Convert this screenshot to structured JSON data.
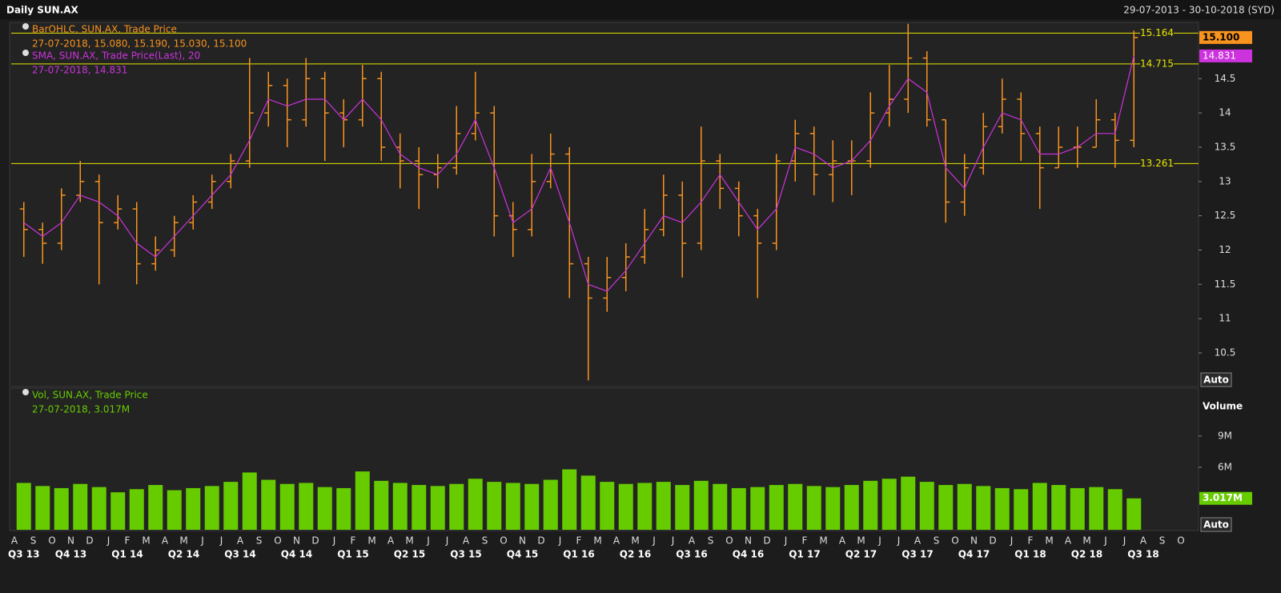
{
  "header": {
    "title": "Daily SUN.AX",
    "date_range": "29-07-2013 - 30-10-2018 (SYD)"
  },
  "controls": {
    "auto": "Auto",
    "volume": "Volume"
  },
  "x_axis": {
    "months": [
      "A",
      "S",
      "O",
      "N",
      "D",
      "J",
      "F",
      "M",
      "A",
      "M",
      "J",
      "J",
      "A",
      "S",
      "O",
      "N",
      "D",
      "J",
      "F",
      "M",
      "A",
      "M",
      "J",
      "J",
      "A",
      "S",
      "O",
      "N",
      "D",
      "J",
      "F",
      "M",
      "A",
      "M",
      "J",
      "J",
      "A",
      "S",
      "O",
      "N",
      "D",
      "J",
      "F",
      "M",
      "A",
      "M",
      "J",
      "J",
      "A",
      "S",
      "O",
      "N",
      "D",
      "J",
      "F",
      "M",
      "A",
      "M",
      "J",
      "J",
      "A",
      "S",
      "O"
    ],
    "quarters": [
      "Q3 13",
      "Q4 13",
      "Q1 14",
      "Q2 14",
      "Q3 14",
      "Q4 14",
      "Q1 15",
      "Q2 15",
      "Q3 15",
      "Q4 15",
      "Q1 16",
      "Q2 16",
      "Q3 16",
      "Q4 16",
      "Q1 17",
      "Q2 17",
      "Q3 17",
      "Q4 17",
      "Q1 18",
      "Q2 18",
      "Q3 18"
    ]
  },
  "chart_data": [
    {
      "type": "ohlc",
      "ylim": [
        10.01,
        15.32
      ],
      "yticks": [
        10.5,
        11,
        11.5,
        12,
        12.5,
        13,
        13.5,
        14,
        14.5
      ],
      "hlines": [
        15.164,
        14.715,
        13.261
      ],
      "hline_color": "#e6e600",
      "series": [
        {
          "name": "BarOHLC, SUN.AX, Trade Price",
          "detail": "27-07-2018, 15.080, 15.190, 15.030, 15.100",
          "color": "#f7931e",
          "open": [
            12.6,
            12.3,
            12.1,
            12.8,
            13.0,
            12.4,
            12.6,
            11.8,
            12.0,
            12.4,
            12.7,
            13.0,
            13.3,
            14.0,
            14.4,
            13.9,
            14.5,
            14.0,
            13.9,
            14.5,
            13.5,
            13.3,
            13.1,
            13.2,
            13.7,
            14.0,
            12.5,
            12.3,
            13.0,
            13.4,
            11.8,
            11.3,
            11.6,
            11.9,
            12.3,
            12.8,
            12.1,
            13.3,
            12.9,
            12.5,
            12.1,
            13.3,
            13.7,
            13.1,
            13.3,
            13.3,
            14.0,
            14.2,
            14.8,
            13.9,
            12.7,
            13.2,
            13.8,
            14.2,
            13.7,
            13.2,
            13.5,
            13.5,
            13.9,
            13.6,
            null,
            null,
            null
          ],
          "high": [
            12.7,
            12.4,
            12.9,
            13.3,
            13.1,
            12.8,
            12.7,
            12.2,
            12.5,
            12.8,
            13.1,
            13.4,
            14.8,
            14.6,
            14.5,
            14.8,
            14.6,
            14.2,
            14.7,
            14.6,
            13.7,
            13.5,
            13.4,
            14.1,
            14.6,
            14.1,
            12.7,
            13.4,
            13.7,
            13.5,
            11.9,
            11.9,
            12.1,
            12.6,
            13.1,
            13.0,
            13.8,
            13.4,
            13.0,
            12.6,
            13.4,
            13.9,
            13.8,
            13.6,
            13.6,
            14.3,
            14.7,
            15.3,
            14.9,
            13.9,
            13.4,
            14.0,
            14.5,
            14.3,
            13.8,
            13.8,
            13.8,
            14.2,
            14.0,
            15.2,
            null,
            null,
            null
          ],
          "low": [
            11.9,
            11.8,
            12.0,
            12.7,
            11.5,
            12.3,
            11.5,
            11.7,
            11.9,
            12.3,
            12.6,
            12.9,
            13.2,
            13.8,
            13.5,
            13.8,
            13.3,
            13.5,
            13.8,
            13.3,
            12.9,
            12.6,
            12.9,
            13.1,
            13.6,
            12.2,
            11.9,
            12.2,
            12.9,
            11.3,
            10.1,
            11.1,
            11.4,
            11.8,
            12.2,
            11.6,
            12.0,
            12.6,
            12.2,
            11.3,
            12.0,
            13.0,
            12.8,
            12.7,
            12.8,
            13.2,
            13.8,
            14.0,
            13.8,
            12.4,
            12.5,
            13.1,
            13.7,
            13.3,
            12.6,
            13.2,
            13.2,
            13.5,
            13.2,
            13.5,
            null,
            null,
            null
          ],
          "values": [
            12.3,
            12.1,
            12.8,
            13.0,
            12.4,
            12.6,
            11.8,
            12.0,
            12.4,
            12.7,
            13.0,
            13.3,
            14.0,
            14.4,
            13.9,
            14.5,
            14.0,
            13.9,
            14.5,
            13.5,
            13.3,
            13.1,
            13.2,
            13.7,
            14.0,
            12.5,
            12.3,
            13.0,
            13.4,
            11.8,
            11.3,
            11.6,
            11.9,
            12.3,
            12.8,
            12.1,
            13.3,
            12.9,
            12.5,
            12.1,
            13.3,
            13.7,
            13.1,
            13.3,
            13.3,
            14.0,
            14.2,
            14.8,
            13.9,
            12.7,
            13.2,
            13.8,
            14.2,
            13.7,
            13.2,
            13.5,
            13.5,
            13.9,
            13.6,
            15.1,
            null,
            null,
            null
          ],
          "value_labels": [
            null,
            null,
            null,
            null,
            null,
            null,
            null,
            null,
            null,
            null,
            null,
            null,
            null,
            null,
            null,
            null,
            null,
            null,
            null,
            null,
            null,
            null,
            null,
            null,
            null,
            null,
            null,
            null,
            null,
            null,
            null,
            null,
            null,
            null,
            null,
            null,
            null,
            null,
            null,
            null,
            null,
            null,
            null,
            null,
            null,
            null,
            null,
            null,
            null,
            null,
            null,
            null,
            null,
            null,
            null,
            null,
            null,
            null,
            null,
            "15.100",
            null,
            null,
            null
          ]
        },
        {
          "name": "SMA, SUN.AX, Trade Price(Last),  20",
          "detail": "27-07-2018, 14.831",
          "color": "#cc33dd",
          "values": [
            12.4,
            12.2,
            12.4,
            12.8,
            12.7,
            12.5,
            12.1,
            11.9,
            12.2,
            12.5,
            12.8,
            13.1,
            13.6,
            14.2,
            14.1,
            14.2,
            14.2,
            13.9,
            14.2,
            13.9,
            13.4,
            13.2,
            13.1,
            13.4,
            13.9,
            13.2,
            12.4,
            12.6,
            13.2,
            12.4,
            11.5,
            11.4,
            11.7,
            12.1,
            12.5,
            12.4,
            12.7,
            13.1,
            12.7,
            12.3,
            12.6,
            13.5,
            13.4,
            13.2,
            13.3,
            13.6,
            14.1,
            14.5,
            14.3,
            13.2,
            12.9,
            13.5,
            14.0,
            13.9,
            13.4,
            13.4,
            13.5,
            13.7,
            13.7,
            14.831,
            null,
            null,
            null
          ]
        }
      ]
    },
    {
      "type": "bar",
      "ylim": [
        0,
        13600000
      ],
      "yticks": [
        {
          "value": 6000000,
          "label": "6M"
        },
        {
          "value": 9000000,
          "label": "9M"
        }
      ],
      "series": [
        {
          "name": "Vol, SUN.AX, Trade Price",
          "detail": "27-07-2018, 3.017M",
          "color": "#66cc00",
          "values": [
            4500000,
            4200000,
            4000000,
            4400000,
            4100000,
            3600000,
            3900000,
            4300000,
            3800000,
            4000000,
            4200000,
            4600000,
            5500000,
            4800000,
            4400000,
            4500000,
            4100000,
            4000000,
            5600000,
            4700000,
            4500000,
            4300000,
            4200000,
            4400000,
            4900000,
            4600000,
            4500000,
            4400000,
            4800000,
            5800000,
            5200000,
            4600000,
            4400000,
            4500000,
            4600000,
            4300000,
            4700000,
            4400000,
            4000000,
            4100000,
            4300000,
            4400000,
            4200000,
            4100000,
            4300000,
            4700000,
            4900000,
            5100000,
            4600000,
            4300000,
            4400000,
            4200000,
            4000000,
            3900000,
            4500000,
            4300000,
            4000000,
            4100000,
            3900000,
            3017000,
            null,
            null,
            null
          ],
          "value_labels": [
            null,
            null,
            null,
            null,
            null,
            null,
            null,
            null,
            null,
            null,
            null,
            null,
            null,
            null,
            null,
            null,
            null,
            null,
            null,
            null,
            null,
            null,
            null,
            null,
            null,
            null,
            null,
            null,
            null,
            null,
            null,
            null,
            null,
            null,
            null,
            null,
            null,
            null,
            null,
            null,
            null,
            null,
            null,
            null,
            null,
            null,
            null,
            null,
            null,
            null,
            null,
            null,
            null,
            null,
            null,
            null,
            null,
            null,
            null,
            "3.017M",
            null,
            null,
            null
          ]
        }
      ]
    }
  ]
}
